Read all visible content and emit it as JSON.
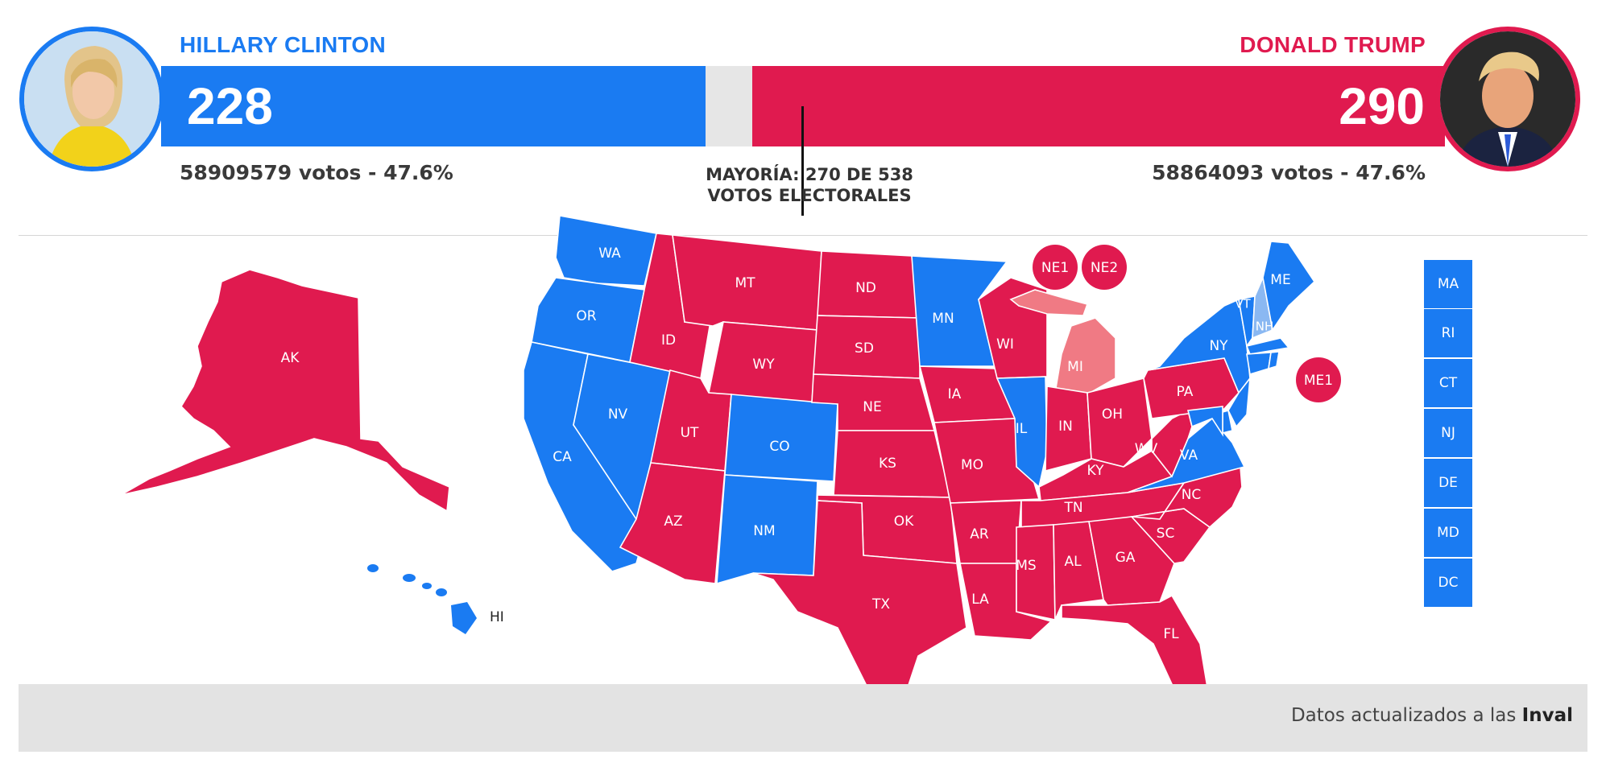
{
  "colors": {
    "dem": "#1a7bf2",
    "rep": "#e01a4f",
    "rep_light": "#f07a84",
    "dem_light": "#8ab8f2",
    "neutral": "#e6e6e6"
  },
  "clinton": {
    "name": "HILLARY CLINTON",
    "electoral": "228",
    "votes_line": "58909579 votos - 47.6%"
  },
  "trump": {
    "name": "DONALD TRUMP",
    "electoral": "290",
    "votes_line": "58864093 votos - 47.6%"
  },
  "majority": {
    "line1": "MAYORÍA: 270 DE 538",
    "line2": "VOTOS ELECTORALES"
  },
  "footer": {
    "prefix": "Datos actualizados a las",
    "time": "Inval"
  },
  "chart_data": {
    "type": "choropleth",
    "total_electoral_votes": 538,
    "majority_threshold": 270,
    "candidates": [
      {
        "name": "HILLARY CLINTON",
        "electoral_votes": 228,
        "popular_votes": 58909579,
        "percent": 47.6,
        "color": "#1a7bf2"
      },
      {
        "name": "DONALD TRUMP",
        "electoral_votes": 290,
        "popular_votes": 58864093,
        "percent": 47.6,
        "color": "#e01a4f"
      }
    ],
    "states": [
      {
        "code": "AK",
        "winner": "rep"
      },
      {
        "code": "HI",
        "winner": "dem"
      },
      {
        "code": "WA",
        "winner": "dem"
      },
      {
        "code": "OR",
        "winner": "dem"
      },
      {
        "code": "CA",
        "winner": "dem"
      },
      {
        "code": "NV",
        "winner": "dem"
      },
      {
        "code": "ID",
        "winner": "rep"
      },
      {
        "code": "MT",
        "winner": "rep"
      },
      {
        "code": "WY",
        "winner": "rep"
      },
      {
        "code": "UT",
        "winner": "rep"
      },
      {
        "code": "AZ",
        "winner": "rep"
      },
      {
        "code": "CO",
        "winner": "dem"
      },
      {
        "code": "NM",
        "winner": "dem"
      },
      {
        "code": "ND",
        "winner": "rep"
      },
      {
        "code": "SD",
        "winner": "rep"
      },
      {
        "code": "NE",
        "winner": "rep"
      },
      {
        "code": "KS",
        "winner": "rep"
      },
      {
        "code": "OK",
        "winner": "rep"
      },
      {
        "code": "TX",
        "winner": "rep"
      },
      {
        "code": "MN",
        "winner": "dem"
      },
      {
        "code": "IA",
        "winner": "rep"
      },
      {
        "code": "MO",
        "winner": "rep"
      },
      {
        "code": "AR",
        "winner": "rep"
      },
      {
        "code": "LA",
        "winner": "rep"
      },
      {
        "code": "WI",
        "winner": "rep"
      },
      {
        "code": "IL",
        "winner": "dem"
      },
      {
        "code": "MI",
        "winner": "rep_lean"
      },
      {
        "code": "IN",
        "winner": "rep"
      },
      {
        "code": "OH",
        "winner": "rep"
      },
      {
        "code": "KY",
        "winner": "rep"
      },
      {
        "code": "TN",
        "winner": "rep"
      },
      {
        "code": "MS",
        "winner": "rep"
      },
      {
        "code": "AL",
        "winner": "rep"
      },
      {
        "code": "GA",
        "winner": "rep"
      },
      {
        "code": "FL",
        "winner": "rep"
      },
      {
        "code": "SC",
        "winner": "rep"
      },
      {
        "code": "NC",
        "winner": "rep"
      },
      {
        "code": "VA",
        "winner": "dem"
      },
      {
        "code": "WV",
        "winner": "rep"
      },
      {
        "code": "PA",
        "winner": "rep"
      },
      {
        "code": "NY",
        "winner": "dem"
      },
      {
        "code": "VT",
        "winner": "dem"
      },
      {
        "code": "NH",
        "winner": "dem_lean"
      },
      {
        "code": "ME",
        "winner": "dem"
      },
      {
        "code": "MA",
        "winner": "dem"
      },
      {
        "code": "RI",
        "winner": "dem"
      },
      {
        "code": "CT",
        "winner": "dem"
      },
      {
        "code": "NJ",
        "winner": "dem"
      },
      {
        "code": "DE",
        "winner": "dem"
      },
      {
        "code": "MD",
        "winner": "dem"
      },
      {
        "code": "DC",
        "winner": "dem"
      },
      {
        "code": "NE1",
        "winner": "rep"
      },
      {
        "code": "NE2",
        "winner": "rep"
      },
      {
        "code": "ME1",
        "winner": "rep"
      }
    ],
    "small_states": [
      "MA",
      "RI",
      "CT",
      "NJ",
      "DE",
      "MD",
      "DC"
    ],
    "districts": [
      "NE1",
      "NE2",
      "ME1"
    ]
  }
}
